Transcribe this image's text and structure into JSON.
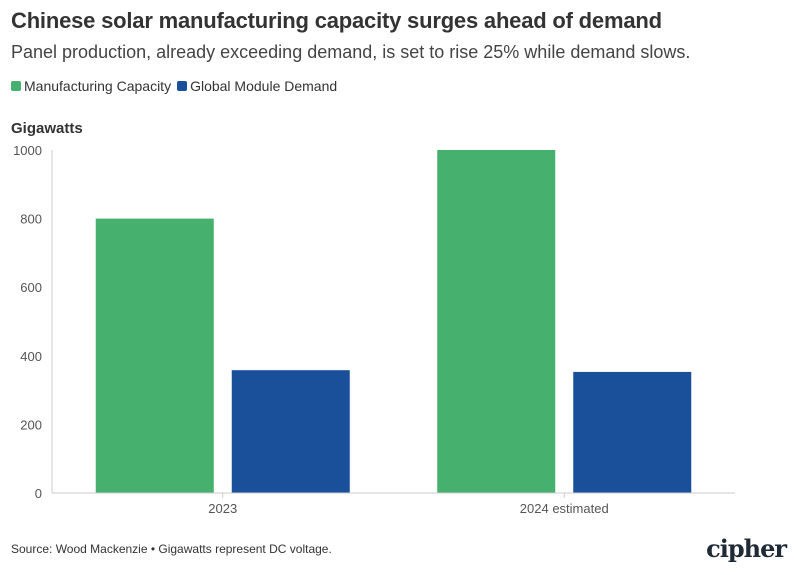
{
  "title": "Chinese solar manufacturing capacity surges ahead of demand",
  "subtitle": "Panel production, already exceeding demand, is set to rise 25% while demand slows.",
  "source": "Source: Wood Mackenzie • Gigawatts represent DC voltage.",
  "logo": "cipher",
  "colors": {
    "capacity": "#46b06e",
    "demand": "#1a4f9a",
    "grid": "#e6e6e6",
    "axis": "#cccccc"
  },
  "chart_data": {
    "type": "bar",
    "categories": [
      "2023",
      "2024 estimated"
    ],
    "series": [
      {
        "name": "Manufacturing Capacity",
        "values": [
          800,
          1000
        ]
      },
      {
        "name": "Global Module Demand",
        "values": [
          358,
          353
        ]
      }
    ],
    "title": "Chinese solar manufacturing capacity surges ahead of demand",
    "subtitle": "Panel production, already exceeding demand, is set to rise 25% while demand slows.",
    "xlabel": "",
    "ylabel": "Gigawatts",
    "ylim": [
      0,
      1000
    ],
    "yticks": [
      0,
      200,
      400,
      600,
      800,
      1000
    ],
    "grid": false,
    "legend": "top-left"
  }
}
